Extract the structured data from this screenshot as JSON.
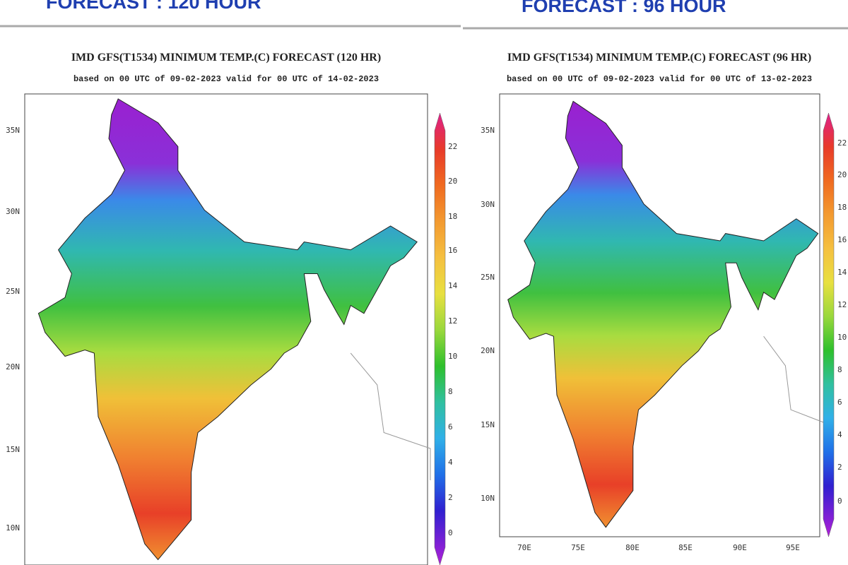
{
  "panels": [
    {
      "header": "FORECAST : 120 HOUR",
      "title": "IMD GFS(T1534) MINIMUM TEMP.(C) FORECAST (120 HR)",
      "subtitle": "based on 00 UTC of 09-02-2023 valid for 00 UTC of 14-02-2023",
      "lat_labels": [
        "35N",
        "30N",
        "25N",
        "20N",
        "15N",
        "10N"
      ],
      "lon_labels": [],
      "colorbar_labels": [
        "22",
        "20",
        "18",
        "16",
        "14",
        "12",
        "10",
        "8",
        "6",
        "4",
        "2",
        "0"
      ]
    },
    {
      "header": "FORECAST : 96 HOUR",
      "title": "IMD GFS(T1534) MINIMUM TEMP.(C) FORECAST (96 HR)",
      "subtitle": "based on 00 UTC of 09-02-2023 valid for 00 UTC of 13-02-2023",
      "lat_labels": [
        "35N",
        "30N",
        "25N",
        "20N",
        "15N",
        "10N"
      ],
      "lon_labels": [
        "70E",
        "75E",
        "80E",
        "85E",
        "90E",
        "95E"
      ],
      "colorbar_labels": [
        "22",
        "20",
        "18",
        "16",
        "14",
        "12",
        "10",
        "8",
        "6",
        "4",
        "2",
        "0"
      ]
    }
  ]
}
